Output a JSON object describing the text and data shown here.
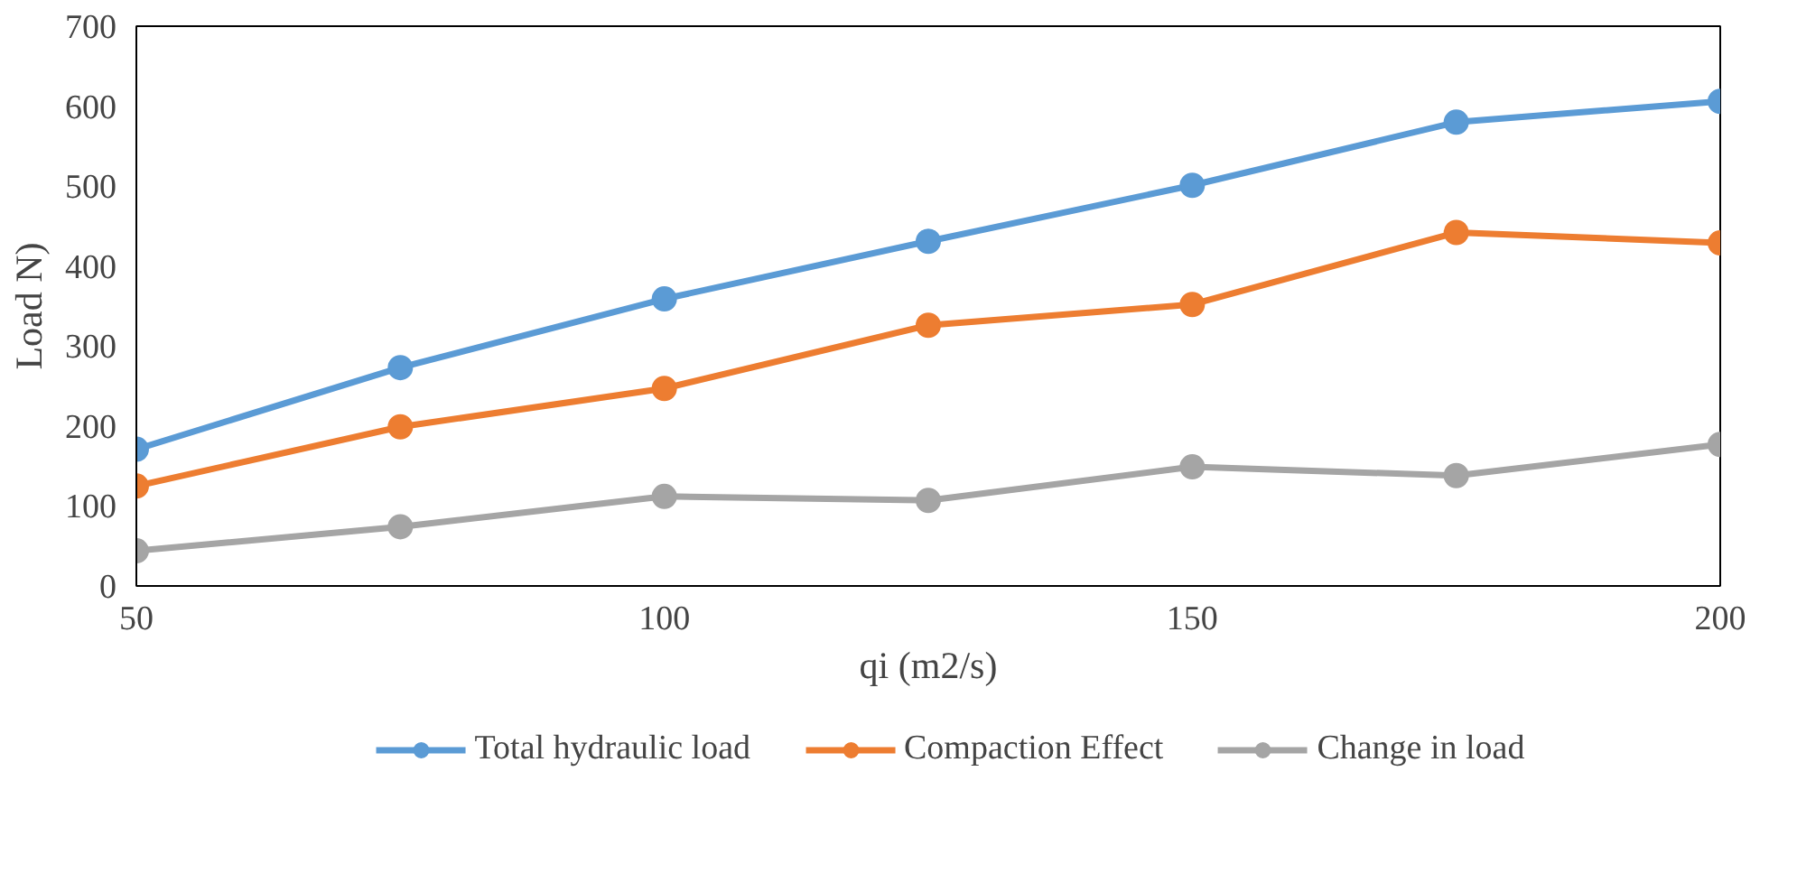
{
  "chart_data": {
    "type": "line",
    "xlabel": "qi (m2/s)",
    "ylabel": "Load N)",
    "x": [
      50,
      75,
      100,
      125,
      150,
      175,
      200
    ],
    "series": [
      {
        "name": "Total hydraulic load",
        "color": "#5b9bd5",
        "values": [
          171,
          273,
          359,
          431,
          501,
          580,
          606
        ]
      },
      {
        "name": "Compaction Effect",
        "color": "#ed7d31",
        "values": [
          125,
          199,
          247,
          326,
          352,
          442,
          429
        ]
      },
      {
        "name": "Change in load",
        "color": "#a5a5a5",
        "values": [
          44,
          74,
          112,
          107,
          149,
          138,
          177
        ]
      }
    ],
    "xlim": [
      50,
      200
    ],
    "xticks": [
      50,
      100,
      150,
      200
    ],
    "ylim": [
      0,
      700
    ],
    "yticks": [
      0,
      100,
      200,
      300,
      400,
      500,
      600,
      700
    ],
    "grid": false,
    "legend": "bottom",
    "marker": "circle",
    "line_style": "solid"
  }
}
